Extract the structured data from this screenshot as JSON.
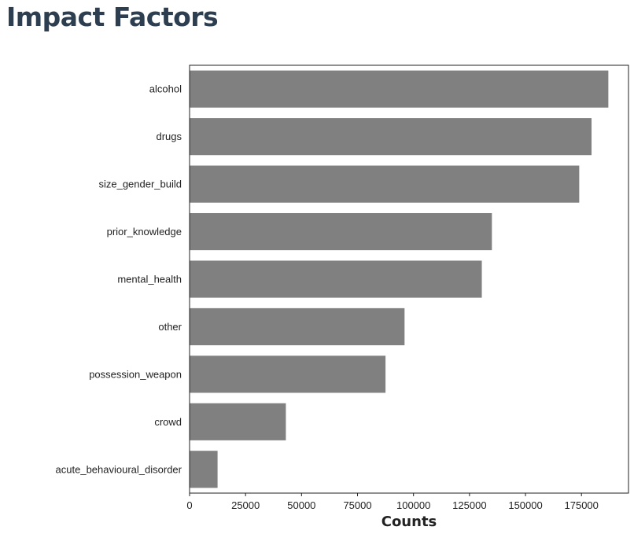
{
  "chart_data": {
    "type": "bar",
    "orientation": "horizontal",
    "title": "Impact Factors",
    "xlabel": "Counts",
    "ylabel": "",
    "categories": [
      "alcohol",
      "drugs",
      "size_gender_build",
      "prior_knowledge",
      "mental_health",
      "other",
      "possession_weapon",
      "crowd",
      "acute_behavioural_disorder"
    ],
    "values": [
      187000,
      179500,
      174000,
      135000,
      130500,
      96000,
      87500,
      43000,
      12500
    ],
    "xlim": [
      0,
      196000
    ],
    "xticks": [
      0,
      25000,
      50000,
      75000,
      100000,
      125000,
      150000,
      175000
    ],
    "xtick_labels": [
      "0",
      "25000",
      "50000",
      "75000",
      "100000",
      "125000",
      "150000",
      "175000"
    ],
    "bar_color": "#808080",
    "grid": false,
    "legend": "none"
  }
}
